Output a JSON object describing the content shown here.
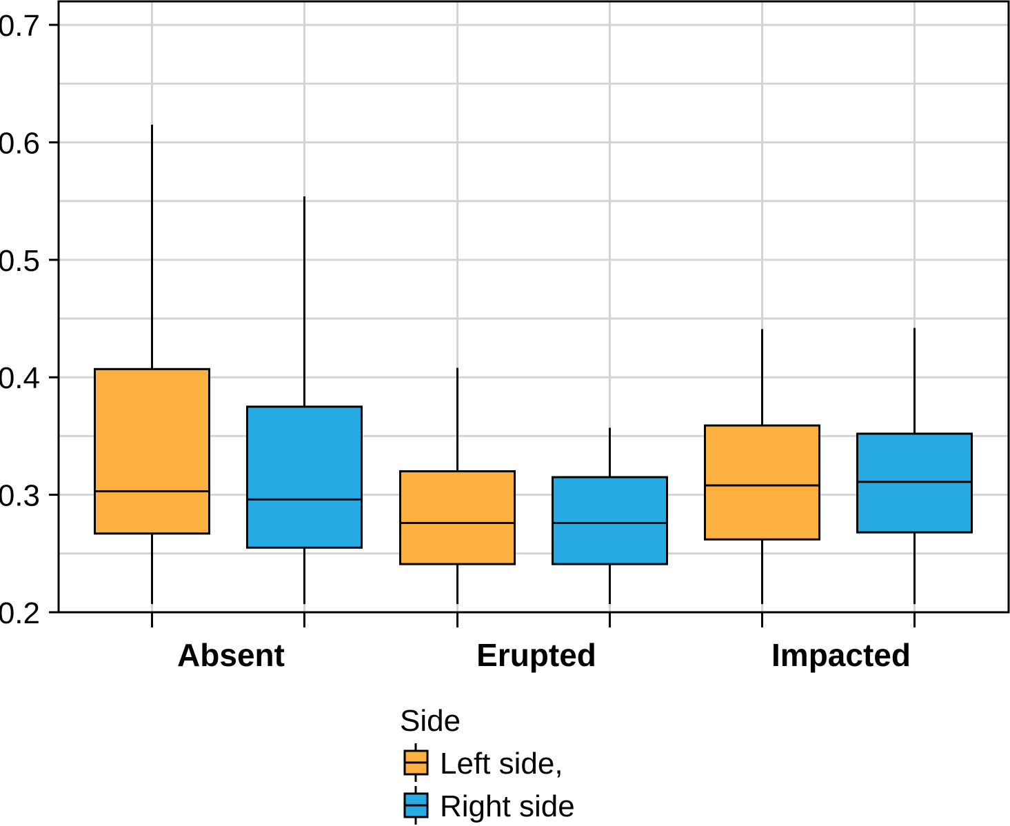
{
  "chart_data": {
    "type": "box",
    "categories": [
      "Absent",
      "Erupted",
      "Impacted"
    ],
    "ylim": [
      0.2,
      0.72
    ],
    "yticks": [
      {
        "value": 0.2,
        "label": "0.2"
      },
      {
        "value": 0.3,
        "label": "0.3"
      },
      {
        "value": 0.4,
        "label": "0.4"
      },
      {
        "value": 0.5,
        "label": "0.5"
      },
      {
        "value": 0.6,
        "label": "0.6"
      },
      {
        "value": 0.7,
        "label": "0.7"
      }
    ],
    "grid": true,
    "series": [
      {
        "name": "Left side,",
        "color": "#FBB040",
        "boxes": [
          {
            "category": "Absent",
            "whisker_low": 0.207,
            "q1": 0.267,
            "median": 0.303,
            "q3": 0.407,
            "whisker_high": 0.615
          },
          {
            "category": "Erupted",
            "whisker_low": 0.207,
            "q1": 0.241,
            "median": 0.276,
            "q3": 0.32,
            "whisker_high": 0.408
          },
          {
            "category": "Impacted",
            "whisker_low": 0.207,
            "q1": 0.262,
            "median": 0.308,
            "q3": 0.359,
            "whisker_high": 0.441
          }
        ]
      },
      {
        "name": "Right side",
        "color": "#27AAE1",
        "boxes": [
          {
            "category": "Absent",
            "whisker_low": 0.207,
            "q1": 0.255,
            "median": 0.296,
            "q3": 0.375,
            "whisker_high": 0.554
          },
          {
            "category": "Erupted",
            "whisker_low": 0.207,
            "q1": 0.241,
            "median": 0.276,
            "q3": 0.315,
            "whisker_high": 0.357
          },
          {
            "category": "Impacted",
            "whisker_low": 0.207,
            "q1": 0.268,
            "median": 0.311,
            "q3": 0.352,
            "whisker_high": 0.442
          }
        ]
      }
    ],
    "legend": {
      "title": "Side",
      "placement": "bottom-center",
      "entries": [
        "Left side,",
        "Right side"
      ]
    }
  }
}
